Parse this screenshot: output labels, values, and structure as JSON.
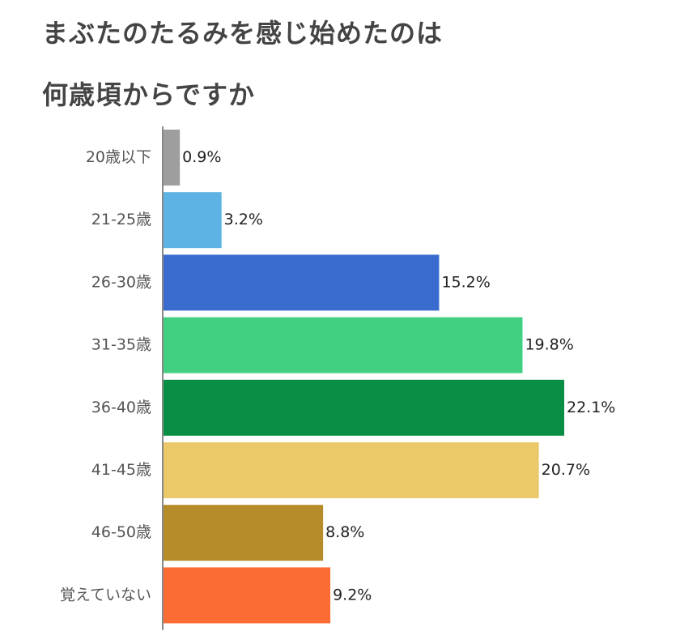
{
  "title_lines": [
    "まぶたのたるみを感じ始めたのは",
    "何歳頃からですか"
  ],
  "chart_data": {
    "type": "bar",
    "orientation": "horizontal",
    "title": "まぶたのたるみを感じ始めたのは何歳頃からですか",
    "categories": [
      "20歳以下",
      "21-25歳",
      "26-30歳",
      "31-35歳",
      "36-40歳",
      "41-45歳",
      "46-50歳",
      "覚えていない"
    ],
    "values": [
      0.9,
      3.2,
      15.2,
      19.8,
      22.1,
      20.7,
      8.8,
      9.2
    ],
    "value_labels": [
      "0.9%",
      "3.2%",
      "15.2%",
      "19.8%",
      "22.1%",
      "20.7%",
      "8.8%",
      "9.2%"
    ],
    "unit": "%",
    "colors": [
      "#9e9e9e",
      "#5db3e3",
      "#3a6ccf",
      "#41cf82",
      "#098f45",
      "#ebc96b",
      "#b68c2a",
      "#fb6c35"
    ],
    "xlim": [
      0,
      22.1
    ],
    "grid": false,
    "legend": "none"
  }
}
